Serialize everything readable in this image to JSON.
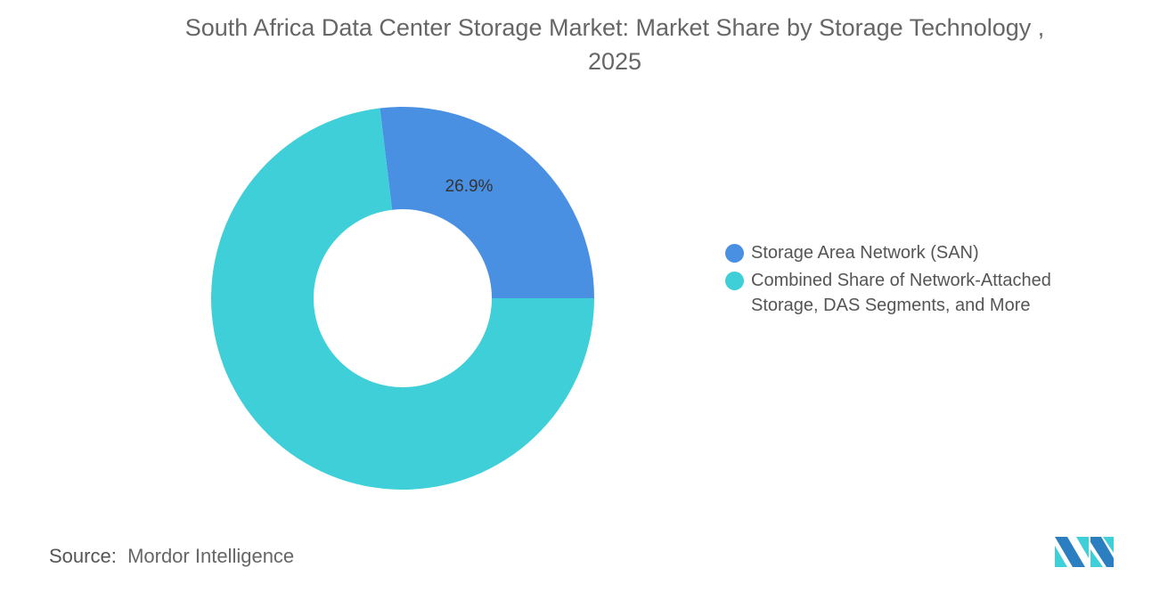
{
  "chart_data": {
    "type": "pie",
    "variant": "donut",
    "title": "South Africa Data Center Storage Market: Market Share by Storage Technology , 2025",
    "slices": [
      {
        "name": "Storage Area Network (SAN)",
        "value": 26.9,
        "label": "26.9%",
        "color": "#4a90e2"
      },
      {
        "name": "Combined Share of Network-Attached Storage, DAS Segments, and More",
        "value": 73.1,
        "label": "",
        "color": "#3ecfd8"
      }
    ],
    "legend_position": "right"
  },
  "source": {
    "label": "Source:",
    "value": "Mordor Intelligence"
  },
  "logo_text": "Mordor Intelligence"
}
